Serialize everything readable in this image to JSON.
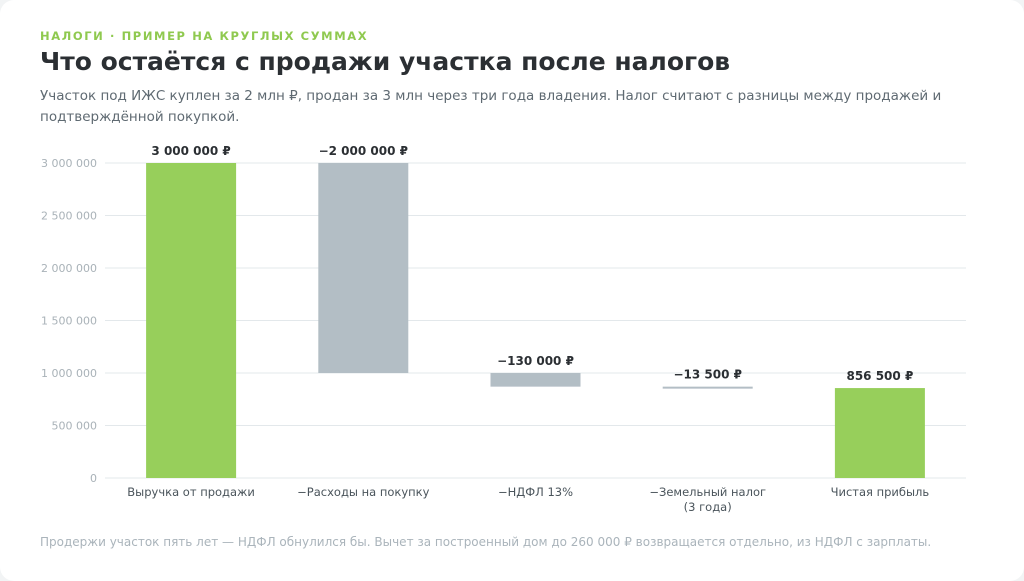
{
  "header": {
    "eyebrow": "НАЛОГИ · ПРИМЕР НА КРУГЛЫХ СУММАХ",
    "title": "Что остаётся с продажи участка после налогов",
    "subtitle": "Участок под ИЖС куплен за 2 млн ₽, продан за 3 млн через три года владения. Налог считают с разницы между продажей и подтверждённой покупкой."
  },
  "footnote": "Продержи участок пять лет — НДФЛ обнулился бы. Вычет за построенный дом до 260 000 ₽ возвращается отдельно, из НДФЛ с зарплаты.",
  "colors": {
    "positive": "#97cf5b",
    "negative": "#b3bec5",
    "grid": "#e3e8eb"
  },
  "chart_data": {
    "type": "waterfall",
    "ylim": [
      0,
      3000000
    ],
    "yticks": [
      {
        "value": 0,
        "label": "0"
      },
      {
        "value": 500000,
        "label": "500 000"
      },
      {
        "value": 1000000,
        "label": "1 000 000"
      },
      {
        "value": 1500000,
        "label": "1 500 000"
      },
      {
        "value": 2000000,
        "label": "2 000 000"
      },
      {
        "value": 2500000,
        "label": "2 500 000"
      },
      {
        "value": 3000000,
        "label": "3 000 000"
      }
    ],
    "grid": true,
    "bars": [
      {
        "category": [
          "Выручка от продажи"
        ],
        "kind": "total",
        "start": 0,
        "end": 3000000,
        "value_label": "3 000 000 ₽"
      },
      {
        "category": [
          "−Расходы на покупку"
        ],
        "kind": "decrease",
        "start": 3000000,
        "end": 1000000,
        "value_label": "−2 000 000 ₽"
      },
      {
        "category": [
          "−НДФЛ 13%"
        ],
        "kind": "decrease",
        "start": 1000000,
        "end": 870000,
        "value_label": "−130 000 ₽"
      },
      {
        "category": [
          "−Земельный налог",
          "(3 года)"
        ],
        "kind": "decrease",
        "start": 870000,
        "end": 856500,
        "value_label": "−13 500 ₽"
      },
      {
        "category": [
          "Чистая прибыль"
        ],
        "kind": "total",
        "start": 0,
        "end": 856500,
        "value_label": "856 500 ₽"
      }
    ]
  }
}
